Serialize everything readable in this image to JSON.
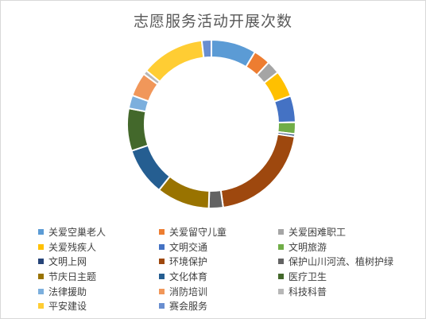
{
  "chart_data": {
    "type": "pie",
    "variant": "doughnut",
    "title": "志愿服务活动开展次数",
    "legend_position": "bottom",
    "categories": [
      "关爱空巢老人",
      "关爱留守儿童",
      "关爱困难职工",
      "关爱残疾人",
      "文明交通",
      "文明旅游",
      "文明上网",
      "环境保护",
      "保护山川河流、植树护绿",
      "节庆日主题",
      "文化体育",
      "医疗卫生",
      "法律援助",
      "消防培训",
      "科技科普",
      "平安建设",
      "赛会服务"
    ],
    "values": [
      8.5,
      3.2,
      2.5,
      5.0,
      5.0,
      2.2,
      0.5,
      20.0,
      2.7,
      10.0,
      9.0,
      8.0,
      2.5,
      4.5,
      0.8,
      12.0,
      1.8
    ],
    "colors": [
      "#5b9bd5",
      "#ed7d31",
      "#a5a5a5",
      "#ffc000",
      "#4472c4",
      "#70ad47",
      "#264478",
      "#9e480e",
      "#636363",
      "#997300",
      "#255e91",
      "#43682b",
      "#7cafdd",
      "#f1975a",
      "#b7b7b7",
      "#ffcd33",
      "#698ed0"
    ]
  }
}
